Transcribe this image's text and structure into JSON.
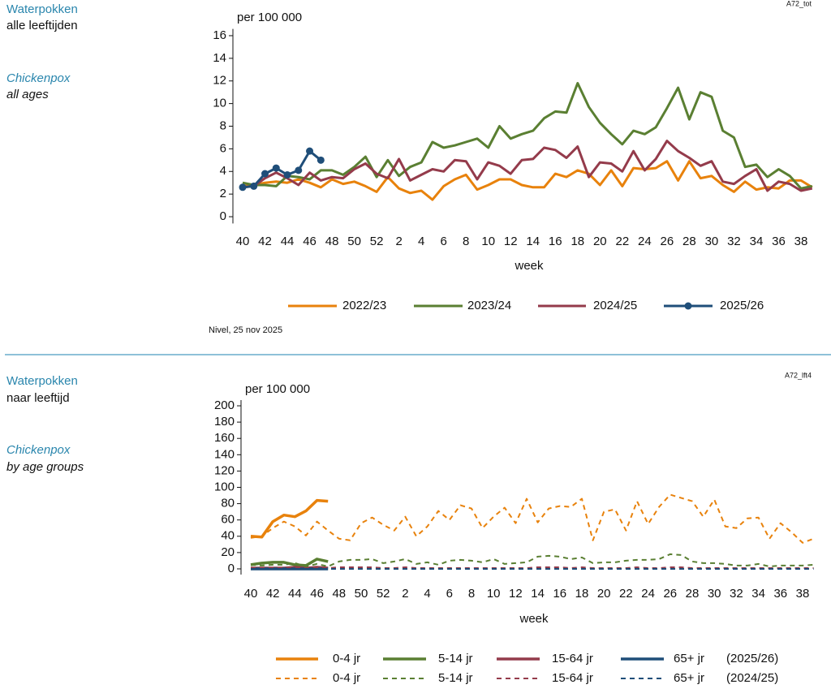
{
  "chart_data": [
    {
      "type": "line",
      "heading": {
        "nl": [
          "Waterpokken",
          "alle leeftijden"
        ],
        "en": [
          "Chickenpox",
          "all ages"
        ]
      },
      "code": "A72_tot",
      "y_label": "per 100 000",
      "x_label": "week",
      "source": "Nivel, 25 nov 2025",
      "categories": [
        40,
        null,
        42,
        null,
        44,
        null,
        46,
        null,
        48,
        null,
        50,
        null,
        52,
        null,
        2,
        null,
        4,
        null,
        6,
        null,
        8,
        null,
        10,
        null,
        12,
        null,
        14,
        null,
        16,
        null,
        18,
        null,
        20,
        null,
        22,
        null,
        24,
        null,
        26,
        null,
        28,
        null,
        30,
        null,
        32,
        null,
        34,
        null,
        36,
        null,
        38,
        null
      ],
      "ylim": [
        -0.6,
        16.6
      ],
      "yticks": [
        0,
        2,
        4,
        6,
        8,
        10,
        12,
        14,
        16
      ],
      "series": [
        {
          "name": "2022/23",
          "color": "#e8820c",
          "values": [
            2.7,
            2.8,
            3.0,
            3.1,
            3.0,
            3.3,
            3.0,
            2.6,
            3.3,
            2.9,
            3.1,
            2.7,
            2.2,
            3.5,
            2.5,
            2.1,
            2.3,
            1.5,
            2.7,
            3.3,
            3.7,
            2.4,
            2.8,
            3.3,
            3.3,
            2.8,
            2.6,
            2.6,
            3.8,
            3.5,
            4.1,
            3.8,
            2.8,
            4.1,
            2.7,
            4.3,
            4.2,
            4.3,
            4.9,
            3.2,
            4.9,
            3.4,
            3.6,
            2.8,
            2.2,
            3.1,
            2.4,
            2.6,
            2.5,
            3.2,
            3.2,
            2.6
          ]
        },
        {
          "name": "2023/24",
          "color": "#5a7f32",
          "values": [
            3.0,
            2.8,
            2.8,
            2.7,
            3.6,
            3.5,
            3.3,
            4.1,
            4.1,
            3.7,
            4.4,
            5.3,
            3.5,
            5.0,
            3.6,
            4.4,
            4.8,
            6.6,
            6.1,
            6.3,
            6.6,
            6.9,
            6.1,
            8.0,
            6.9,
            7.3,
            7.6,
            8.7,
            9.3,
            9.2,
            11.8,
            9.7,
            8.3,
            7.3,
            6.4,
            7.6,
            7.3,
            7.9,
            9.6,
            11.4,
            8.6,
            11.0,
            10.6,
            7.6,
            7.0,
            4.4,
            4.6,
            3.5,
            4.2,
            3.6,
            2.5,
            2.7
          ]
        },
        {
          "name": "2024/25",
          "color": "#943b4b",
          "values": [
            2.6,
            2.7,
            3.4,
            3.9,
            3.4,
            2.8,
            3.9,
            3.2,
            3.5,
            3.4,
            4.2,
            4.7,
            3.8,
            3.4,
            5.1,
            3.2,
            3.7,
            4.2,
            4.0,
            5.0,
            4.9,
            3.3,
            4.8,
            4.5,
            3.8,
            5.0,
            5.1,
            6.1,
            5.9,
            5.2,
            6.2,
            3.5,
            4.8,
            4.7,
            4.0,
            5.8,
            4.1,
            5.1,
            6.7,
            5.8,
            5.2,
            4.5,
            4.9,
            3.1,
            2.9,
            3.6,
            4.2,
            2.3,
            3.1,
            2.9,
            2.3,
            2.5
          ]
        },
        {
          "name": "2025/26",
          "color": "#1f4e79",
          "marker": "circle",
          "values": [
            2.6,
            2.7,
            3.8,
            4.3,
            3.7,
            4.1,
            5.8,
            5.0,
            null,
            null,
            null,
            null,
            null,
            null,
            null,
            null,
            null,
            null,
            null,
            null,
            null,
            null,
            null,
            null,
            null,
            null,
            null,
            null,
            null,
            null,
            null,
            null,
            null,
            null,
            null,
            null,
            null,
            null,
            null,
            null,
            null,
            null,
            null,
            null,
            null,
            null,
            null,
            null,
            null,
            null,
            null,
            null
          ]
        }
      ]
    },
    {
      "type": "line",
      "heading": {
        "nl": [
          "Waterpokken",
          "naar leeftijd"
        ],
        "en": [
          "Chickenpox",
          "by age groups"
        ]
      },
      "code": "A72_lft4",
      "y_label": "per 100 000",
      "x_label": "week",
      "legend_row_labels": [
        "(2025/26)",
        "(2024/25)"
      ],
      "categories": [
        40,
        null,
        42,
        null,
        44,
        null,
        46,
        null,
        48,
        null,
        50,
        null,
        52,
        null,
        2,
        null,
        4,
        null,
        6,
        null,
        8,
        null,
        10,
        null,
        12,
        null,
        14,
        null,
        16,
        null,
        18,
        null,
        20,
        null,
        22,
        null,
        24,
        null,
        26,
        null,
        28,
        null,
        30,
        null,
        32,
        null,
        34,
        null,
        36,
        null,
        38,
        null
      ],
      "ylim": [
        -7,
        207
      ],
      "yticks": [
        0,
        20,
        40,
        60,
        80,
        100,
        120,
        140,
        160,
        180,
        200
      ],
      "series": [
        {
          "name": "0-4 jr",
          "color": "#e8820c",
          "dashed": false,
          "values": [
            40,
            39,
            58,
            66,
            64,
            71,
            84,
            83,
            null,
            null,
            null,
            null,
            null,
            null,
            null,
            null,
            null,
            null,
            null,
            null,
            null,
            null,
            null,
            null,
            null,
            null,
            null,
            null,
            null,
            null,
            null,
            null,
            null,
            null,
            null,
            null,
            null,
            null,
            null,
            null,
            null,
            null,
            null,
            null,
            null,
            null,
            null,
            null,
            null,
            null,
            null,
            null
          ]
        },
        {
          "name": "5-14 jr",
          "color": "#5a7f32",
          "dashed": false,
          "values": [
            5,
            7,
            8,
            8,
            5,
            4,
            12,
            9,
            null,
            null,
            null,
            null,
            null,
            null,
            null,
            null,
            null,
            null,
            null,
            null,
            null,
            null,
            null,
            null,
            null,
            null,
            null,
            null,
            null,
            null,
            null,
            null,
            null,
            null,
            null,
            null,
            null,
            null,
            null,
            null,
            null,
            null,
            null,
            null,
            null,
            null,
            null,
            null,
            null,
            null,
            null,
            null
          ]
        },
        {
          "name": "15-64 jr",
          "color": "#943b4b",
          "dashed": false,
          "values": [
            1,
            1,
            1,
            1,
            2,
            1,
            2,
            1,
            null,
            null,
            null,
            null,
            null,
            null,
            null,
            null,
            null,
            null,
            null,
            null,
            null,
            null,
            null,
            null,
            null,
            null,
            null,
            null,
            null,
            null,
            null,
            null,
            null,
            null,
            null,
            null,
            null,
            null,
            null,
            null,
            null,
            null,
            null,
            null,
            null,
            null,
            null,
            null,
            null,
            null,
            null,
            null
          ]
        },
        {
          "name": "65+ jr",
          "color": "#1f4e79",
          "dashed": false,
          "values": [
            0,
            0,
            0,
            0,
            0,
            0,
            0,
            0,
            null,
            null,
            null,
            null,
            null,
            null,
            null,
            null,
            null,
            null,
            null,
            null,
            null,
            null,
            null,
            null,
            null,
            null,
            null,
            null,
            null,
            null,
            null,
            null,
            null,
            null,
            null,
            null,
            null,
            null,
            null,
            null,
            null,
            null,
            null,
            null,
            null,
            null,
            null,
            null,
            null,
            null,
            null,
            null
          ]
        },
        {
          "name": "0-4 jr",
          "color": "#e8820c",
          "dashed": true,
          "values": [
            38,
            40,
            50,
            58,
            52,
            41,
            58,
            47,
            37,
            35,
            56,
            63,
            54,
            47,
            64,
            40,
            52,
            71,
            60,
            78,
            74,
            50,
            64,
            75,
            56,
            86,
            57,
            74,
            77,
            76,
            86,
            35,
            70,
            73,
            47,
            83,
            55,
            76,
            91,
            87,
            83,
            64,
            85,
            52,
            50,
            62,
            63,
            37,
            56,
            45,
            32,
            37
          ]
        },
        {
          "name": "5-14 jr",
          "color": "#5a7f32",
          "dashed": true,
          "values": [
            5,
            4,
            5,
            5,
            7,
            3,
            6,
            3,
            9,
            11,
            11,
            12,
            7,
            9,
            12,
            6,
            8,
            5,
            10,
            11,
            10,
            8,
            12,
            6,
            7,
            8,
            15,
            16,
            15,
            12,
            14,
            7,
            8,
            8,
            10,
            11,
            11,
            12,
            18,
            17,
            9,
            7,
            7,
            6,
            4,
            4,
            6,
            3,
            4,
            4,
            4,
            5
          ]
        },
        {
          "name": "15-64 jr",
          "color": "#943b4b",
          "dashed": true,
          "values": [
            1,
            1,
            1,
            1,
            1,
            1,
            1,
            1,
            2,
            2,
            2,
            2,
            1,
            1,
            2,
            1,
            1,
            1,
            1,
            1,
            1,
            1,
            1,
            1,
            1,
            1,
            2,
            2,
            2,
            1,
            2,
            1,
            1,
            1,
            1,
            2,
            1,
            1,
            2,
            2,
            1,
            1,
            1,
            1,
            1,
            1,
            1,
            1,
            1,
            1,
            1,
            1
          ]
        },
        {
          "name": "65+ jr",
          "color": "#1f4e79",
          "dashed": true,
          "values": [
            0,
            0,
            0,
            0,
            0,
            0,
            0,
            0,
            0,
            0,
            0,
            0,
            0,
            0,
            0,
            0,
            0,
            0,
            0,
            0,
            0,
            0,
            0,
            0,
            0,
            0,
            0,
            0,
            0,
            0,
            0,
            0,
            0,
            0,
            0,
            0,
            0,
            0,
            0,
            0,
            0,
            0,
            0,
            0,
            0,
            0,
            0,
            0,
            0,
            0,
            0,
            0
          ]
        }
      ]
    }
  ]
}
